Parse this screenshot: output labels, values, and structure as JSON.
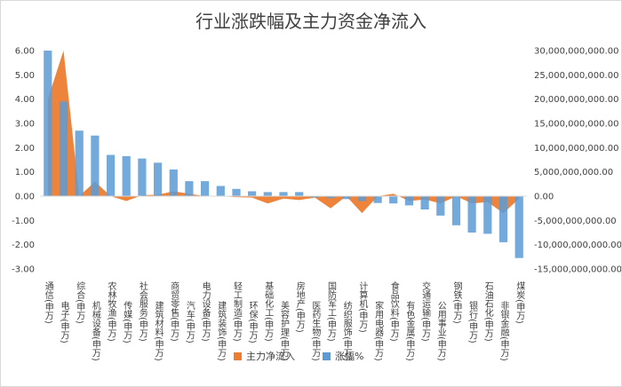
{
  "chart_data": {
    "type": "bar",
    "title": "行业涨跌幅及主力资金净流入",
    "categories": [
      "通信(申万)",
      "电子(申万)",
      "综合(申万)",
      "机械设备(申万)",
      "农林牧渔(申万)",
      "传媒(申万)",
      "社会服务(申万)",
      "建筑材料(申万)",
      "商贸零售(申万)",
      "汽车(申万)",
      "电力设备(申万)",
      "建筑装饰(申万)",
      "轻工制造(申万)",
      "环保(申万)",
      "基础化工(申万)",
      "美容护理(申万)",
      "房地产(申万)",
      "医药生物(申万)",
      "国防军工(申万)",
      "纺织服饰(申万)",
      "计算机(申万)",
      "家用电器(申万)",
      "食品饮料(申万)",
      "有色金属(申万)",
      "交通运输(申万)",
      "公用事业(申万)",
      "钢铁(申万)",
      "银行(申万)",
      "石油石化(申万)",
      "非银金融(申万)",
      "煤炭(申万)"
    ],
    "series": [
      {
        "name": "主力净流入",
        "type": "area",
        "axis": "right",
        "color": "#ED7D31",
        "values": [
          20000000000,
          30000000000,
          0,
          3000000000,
          0,
          -1000000000,
          200000000,
          300000000,
          1000000000,
          500000000,
          0,
          0,
          -200000000,
          -300000000,
          -1500000000,
          -500000000,
          -800000000,
          -300000000,
          -2500000000,
          0,
          -3500000000,
          0,
          500000000,
          -1000000000,
          -700000000,
          -1500000000,
          0,
          -1500000000,
          -1200000000,
          -3500000000,
          -500000000
        ]
      },
      {
        "name": "涨幅%",
        "type": "bar",
        "axis": "left",
        "color": "#5B9BD5",
        "values": [
          6.0,
          3.9,
          2.7,
          2.5,
          1.7,
          1.65,
          1.55,
          1.38,
          1.1,
          0.62,
          0.62,
          0.42,
          0.3,
          0.2,
          0.17,
          0.17,
          0.17,
          -0.05,
          -0.08,
          -0.12,
          -0.2,
          -0.28,
          -0.3,
          -0.38,
          -0.55,
          -0.8,
          -1.2,
          -1.5,
          -1.55,
          -1.9,
          -2.55
        ]
      }
    ],
    "y_left": {
      "range": [
        -3.0,
        6.0
      ],
      "ticks": [
        "6.00",
        "5.00",
        "4.00",
        "3.00",
        "2.00",
        "1.00",
        "0.00",
        "-1.00",
        "-2.00",
        "-3.00"
      ],
      "tick_values": [
        6,
        5,
        4,
        3,
        2,
        1,
        0,
        -1,
        -2,
        -3
      ]
    },
    "y_right": {
      "range": [
        -15000000000,
        30000000000
      ],
      "ticks": [
        "30,000,000,000.00",
        "25,000,000,000.00",
        "20,000,000,000.00",
        "15,000,000,000.00",
        "10,000,000,000.00",
        "5,000,000,000.00",
        "0.00",
        "-5,000,000,000.00",
        "-10,000,000,000.00",
        "-15,000,000,000.00"
      ],
      "tick_values": [
        30000000000,
        25000000000,
        20000000000,
        15000000000,
        10000000000,
        5000000000,
        0,
        -5000000000,
        -10000000000,
        -15000000000
      ]
    },
    "grid": false,
    "legend": {
      "position": "bottom",
      "items": [
        "主力净流入",
        "涨幅%"
      ]
    }
  }
}
